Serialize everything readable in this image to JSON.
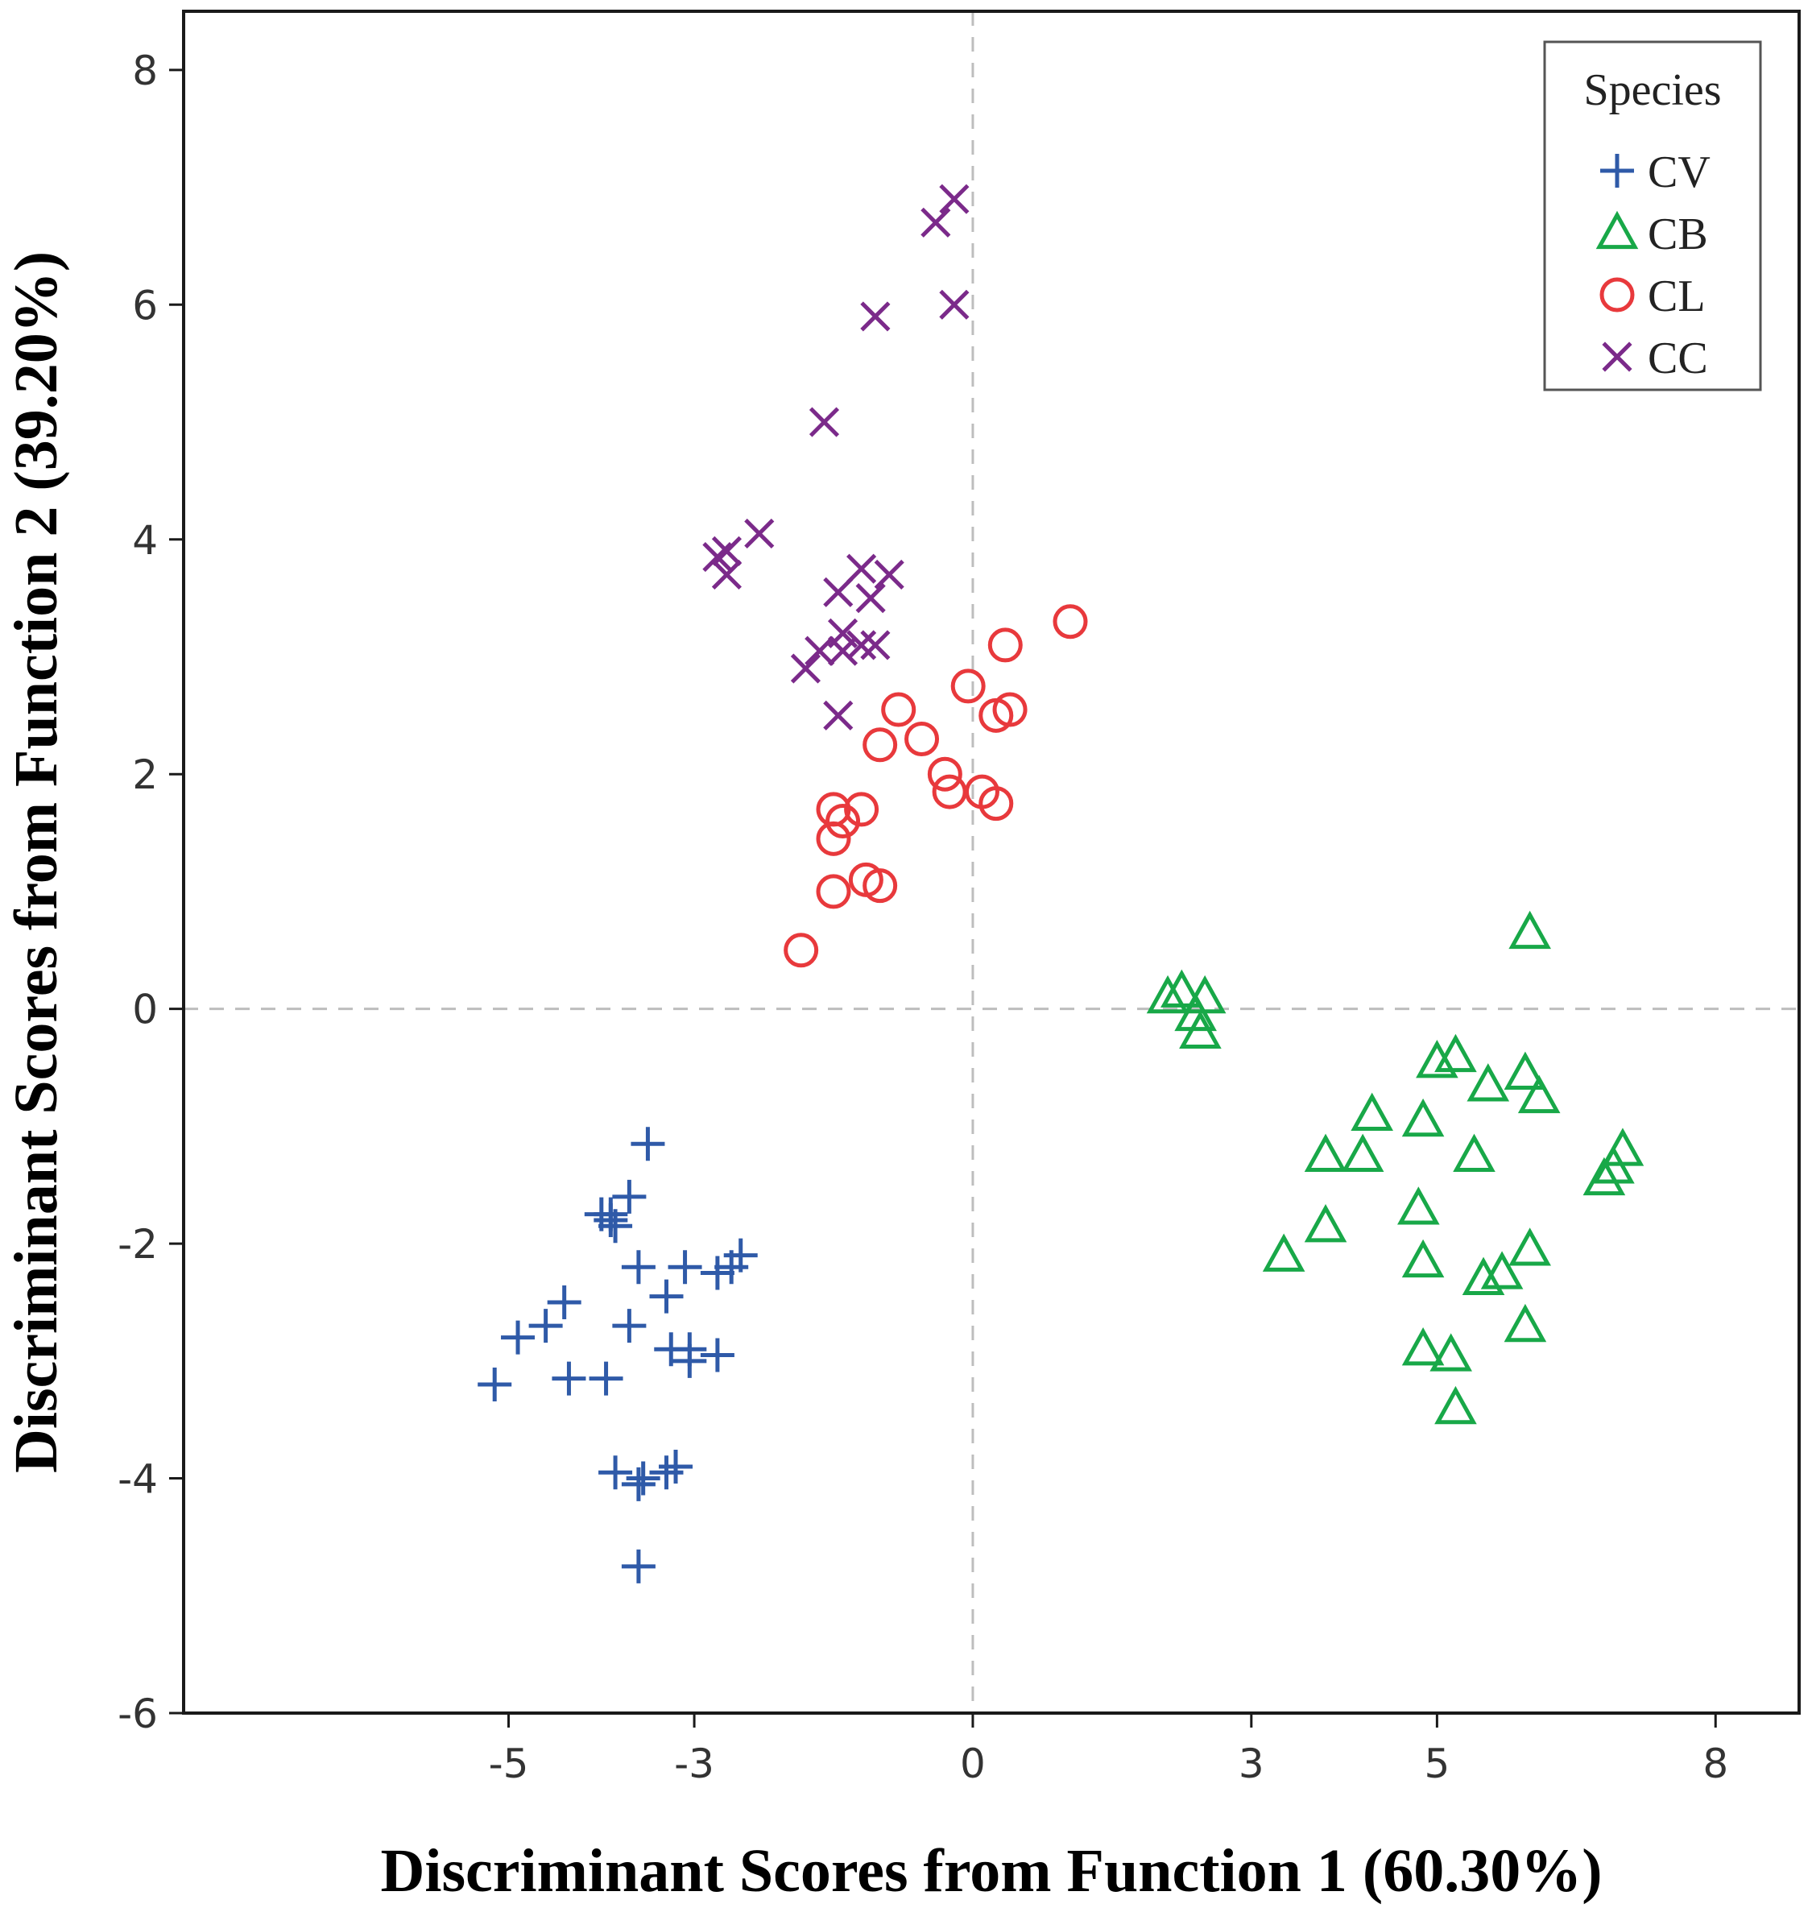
{
  "chart_data": {
    "type": "scatter",
    "xlabel": "Discriminant Scores from Function 1 (60.30%)",
    "ylabel": "Discriminant Scores from Function 2 (39.20%)",
    "xlim": [
      -8.5,
      8.9
    ],
    "ylim": [
      -6,
      8.5
    ],
    "x_ticks": [
      -5,
      -3,
      0,
      3,
      5,
      8
    ],
    "x_tick_labels": [
      "-5",
      "-3",
      "0",
      "3",
      "5",
      "8"
    ],
    "y_ticks": [
      8,
      6,
      4,
      2,
      0,
      -2,
      -4,
      -6
    ],
    "y_tick_labels": [
      "8",
      "6",
      "4",
      "2",
      "0",
      "-2",
      "-4",
      "-6"
    ],
    "reference_lines": {
      "x": 0,
      "y": 0
    },
    "grid": false,
    "legend": {
      "title": "Species",
      "position": "top-right"
    },
    "series": [
      {
        "name": "CV",
        "marker": "plus",
        "color": "#2f5aa8",
        "points": [
          [
            -3.5,
            -1.15
          ],
          [
            -3.7,
            -1.6
          ],
          [
            -3.9,
            -1.75
          ],
          [
            -3.85,
            -1.85
          ],
          [
            -4.0,
            -1.75
          ],
          [
            -3.9,
            -1.8
          ],
          [
            -3.6,
            -2.2
          ],
          [
            -3.1,
            -2.2
          ],
          [
            -2.75,
            -2.25
          ],
          [
            -2.5,
            -2.1
          ],
          [
            -2.6,
            -2.2
          ],
          [
            -3.3,
            -2.45
          ],
          [
            -3.7,
            -2.7
          ],
          [
            -4.4,
            -2.5
          ],
          [
            -4.6,
            -2.7
          ],
          [
            -4.9,
            -2.8
          ],
          [
            -5.15,
            -3.2
          ],
          [
            -4.35,
            -3.15
          ],
          [
            -3.95,
            -3.15
          ],
          [
            -3.25,
            -2.9
          ],
          [
            -3.05,
            -2.9
          ],
          [
            -3.05,
            -3.0
          ],
          [
            -2.75,
            -2.95
          ],
          [
            -3.85,
            -3.95
          ],
          [
            -3.6,
            -4.05
          ],
          [
            -3.55,
            -4.0
          ],
          [
            -3.3,
            -3.95
          ],
          [
            -3.2,
            -3.9
          ],
          [
            -3.6,
            -4.75
          ]
        ]
      },
      {
        "name": "CB",
        "marker": "triangle",
        "color": "#18a848",
        "points": [
          [
            2.1,
            0.1
          ],
          [
            2.25,
            0.15
          ],
          [
            2.5,
            0.1
          ],
          [
            2.4,
            -0.05
          ],
          [
            2.45,
            -0.2
          ],
          [
            6.0,
            0.65
          ],
          [
            5.0,
            -0.45
          ],
          [
            5.2,
            -0.4
          ],
          [
            5.55,
            -0.65
          ],
          [
            5.95,
            -0.55
          ],
          [
            6.1,
            -0.75
          ],
          [
            4.3,
            -0.9
          ],
          [
            4.85,
            -0.95
          ],
          [
            3.8,
            -1.25
          ],
          [
            4.2,
            -1.25
          ],
          [
            5.4,
            -1.25
          ],
          [
            7.0,
            -1.2
          ],
          [
            6.9,
            -1.35
          ],
          [
            6.8,
            -1.45
          ],
          [
            4.8,
            -1.7
          ],
          [
            3.35,
            -2.1
          ],
          [
            3.8,
            -1.85
          ],
          [
            4.85,
            -2.15
          ],
          [
            5.5,
            -2.3
          ],
          [
            5.7,
            -2.25
          ],
          [
            6.0,
            -2.05
          ],
          [
            4.85,
            -2.9
          ],
          [
            5.15,
            -2.95
          ],
          [
            5.95,
            -2.7
          ],
          [
            5.2,
            -3.4
          ]
        ]
      },
      {
        "name": "CL",
        "marker": "circle",
        "color": "#e8393c",
        "points": [
          [
            1.05,
            3.3
          ],
          [
            0.35,
            3.1
          ],
          [
            -0.05,
            2.75
          ],
          [
            0.25,
            2.5
          ],
          [
            0.4,
            2.55
          ],
          [
            -0.8,
            2.55
          ],
          [
            -1.0,
            2.25
          ],
          [
            -0.55,
            2.3
          ],
          [
            -0.3,
            2.0
          ],
          [
            -0.25,
            1.85
          ],
          [
            0.1,
            1.85
          ],
          [
            0.25,
            1.75
          ],
          [
            -1.5,
            1.7
          ],
          [
            -1.2,
            1.7
          ],
          [
            -1.4,
            1.6
          ],
          [
            -1.5,
            1.45
          ],
          [
            -1.15,
            1.1
          ],
          [
            -1.0,
            1.05
          ],
          [
            -1.5,
            1.0
          ],
          [
            -1.85,
            0.5
          ]
        ]
      },
      {
        "name": "CC",
        "marker": "x",
        "color": "#7b2a8a",
        "points": [
          [
            -0.2,
            6.9
          ],
          [
            -0.4,
            6.7
          ],
          [
            -0.2,
            6.0
          ],
          [
            -1.05,
            5.9
          ],
          [
            -1.6,
            5.0
          ],
          [
            -2.3,
            4.05
          ],
          [
            -2.75,
            3.85
          ],
          [
            -2.65,
            3.9
          ],
          [
            -2.65,
            3.7
          ],
          [
            -1.2,
            3.75
          ],
          [
            -0.9,
            3.7
          ],
          [
            -1.45,
            3.55
          ],
          [
            -1.1,
            3.5
          ],
          [
            -1.4,
            3.2
          ],
          [
            -1.2,
            3.1
          ],
          [
            -1.4,
            3.05
          ],
          [
            -1.05,
            3.1
          ],
          [
            -1.65,
            3.05
          ],
          [
            -1.8,
            2.9
          ],
          [
            -1.45,
            2.5
          ]
        ]
      }
    ]
  }
}
